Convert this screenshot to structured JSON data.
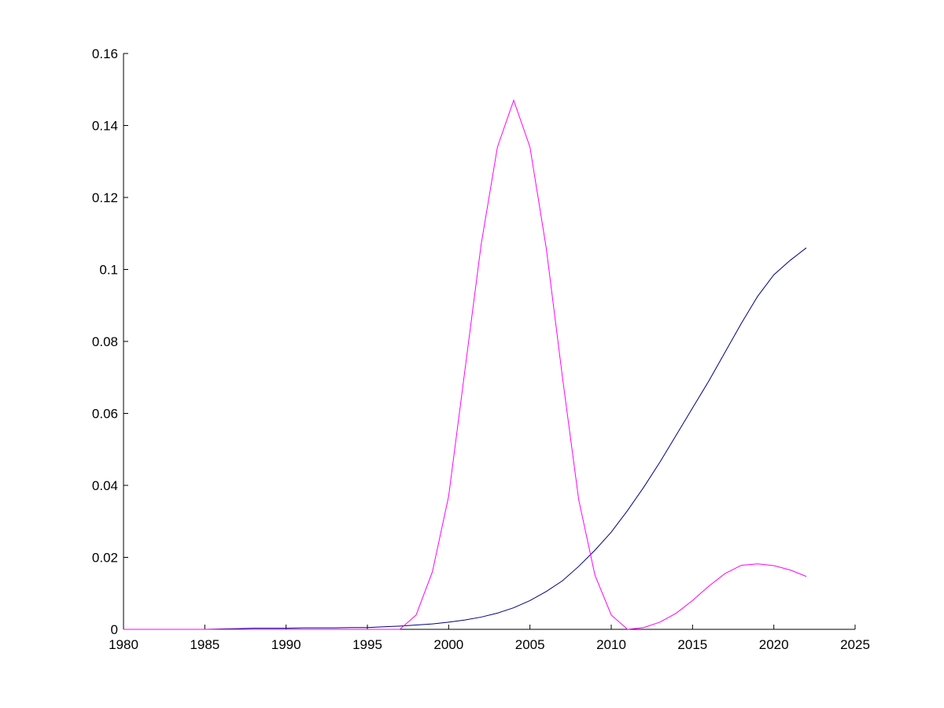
{
  "chart_data": {
    "type": "line",
    "x": [
      1980,
      1981,
      1982,
      1983,
      1984,
      1985,
      1986,
      1987,
      1988,
      1989,
      1990,
      1991,
      1992,
      1993,
      1994,
      1995,
      1996,
      1997,
      1998,
      1999,
      2000,
      2001,
      2002,
      2003,
      2004,
      2005,
      2006,
      2007,
      2008,
      2009,
      2010,
      2011,
      2012,
      2013,
      2014,
      2015,
      2016,
      2017,
      2018,
      2019,
      2020,
      2021,
      2022
    ],
    "series": [
      {
        "color": "#000080",
        "values": [
          0,
          0,
          0,
          0,
          0,
          0,
          0.0001,
          0.0002,
          0.0003,
          0.0003,
          0.0003,
          0.0004,
          0.0004,
          0.0004,
          0.0005,
          0.0005,
          0.0007,
          0.0009,
          0.0012,
          0.0015,
          0.002,
          0.0026,
          0.0034,
          0.0045,
          0.006,
          0.008,
          0.0105,
          0.0135,
          0.0175,
          0.022,
          0.027,
          0.033,
          0.0395,
          0.0465,
          0.054,
          0.0615,
          0.069,
          0.077,
          0.085,
          0.0925,
          0.0985,
          0.1025,
          0.106
        ]
      },
      {
        "color": "#ff00ff",
        "values": [
          0,
          0,
          0,
          0,
          0,
          0,
          0,
          0,
          0,
          0,
          0,
          0,
          0,
          0,
          0,
          0,
          0,
          0,
          0.004,
          0.016,
          0.037,
          0.072,
          0.107,
          0.134,
          0.147,
          0.134,
          0.106,
          0.07,
          0.036,
          0.015,
          0.004,
          0,
          0.0005,
          0.002,
          0.0045,
          0.008,
          0.012,
          0.0155,
          0.0178,
          0.0182,
          0.0177,
          0.0165,
          0.0147
        ]
      }
    ],
    "xlim": [
      1980,
      2025
    ],
    "xticks": [
      1980,
      1985,
      1990,
      1995,
      2000,
      2005,
      2010,
      2015,
      2020,
      2025
    ],
    "ylim": [
      0,
      0.16
    ],
    "yticks": [
      0,
      0.02,
      0.04,
      0.06,
      0.08,
      0.1,
      0.12,
      0.14,
      0.16
    ]
  }
}
